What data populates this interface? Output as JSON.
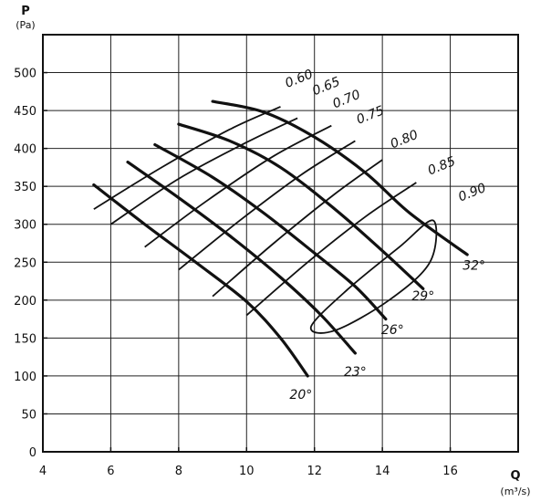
{
  "chart_data": {
    "type": "line",
    "xlabel": "Q",
    "xunit": "(m³/s)",
    "ylabel": "P",
    "yunit": "(Pa)",
    "xlim": [
      4,
      18
    ],
    "ylim": [
      0,
      550
    ],
    "xticks": [
      "4",
      "6",
      "8",
      "10",
      "12",
      "14",
      "16"
    ],
    "yticks": [
      "0",
      "50",
      "100",
      "150",
      "200",
      "250",
      "300",
      "350",
      "400",
      "450",
      "500"
    ],
    "grid": true,
    "blade_angle_curves": [
      {
        "name": "20°",
        "points": [
          [
            5.5,
            352
          ],
          [
            7,
            300
          ],
          [
            8.5,
            250
          ],
          [
            10,
            198
          ],
          [
            11,
            150
          ],
          [
            11.8,
            100
          ]
        ],
        "label_at": [
          11.6,
          70
        ]
      },
      {
        "name": "23°",
        "points": [
          [
            6.5,
            382
          ],
          [
            8,
            335
          ],
          [
            9.5,
            285
          ],
          [
            11,
            230
          ],
          [
            12.2,
            180
          ],
          [
            13.2,
            130
          ]
        ],
        "label_at": [
          13.2,
          100
        ]
      },
      {
        "name": "26°",
        "points": [
          [
            7.3,
            405
          ],
          [
            9,
            362
          ],
          [
            10.5,
            315
          ],
          [
            12,
            262
          ],
          [
            13.2,
            218
          ],
          [
            14.1,
            175
          ]
        ],
        "label_at": [
          14.3,
          155
        ]
      },
      {
        "name": "29°",
        "points": [
          [
            8,
            432
          ],
          [
            9.5,
            410
          ],
          [
            11,
            375
          ],
          [
            12.6,
            320
          ],
          [
            14,
            265
          ],
          [
            15.2,
            215
          ]
        ],
        "label_at": [
          15.2,
          200
        ]
      },
      {
        "name": "32°",
        "points": [
          [
            9,
            462
          ],
          [
            10.5,
            448
          ],
          [
            12,
            415
          ],
          [
            13.5,
            368
          ],
          [
            14.8,
            315
          ],
          [
            16.5,
            260
          ]
        ],
        "label_at": [
          16.7,
          240
        ]
      }
    ],
    "efficiency_curves": [
      {
        "name": "0.60",
        "points": [
          [
            5.5,
            320
          ],
          [
            7.5,
            375
          ],
          [
            9.5,
            425
          ],
          [
            11,
            455
          ]
        ],
        "label_at": [
          11.2,
          480
        ]
      },
      {
        "name": "0.65",
        "points": [
          [
            6,
            300
          ],
          [
            8,
            360
          ],
          [
            10,
            408
          ],
          [
            11.5,
            440
          ]
        ],
        "label_at": [
          12,
          470
        ]
      },
      {
        "name": "0.70",
        "points": [
          [
            7,
            270
          ],
          [
            8.8,
            330
          ],
          [
            10.8,
            390
          ],
          [
            12.5,
            430
          ]
        ],
        "label_at": [
          12.6,
          453
        ]
      },
      {
        "name": "0.75",
        "points": [
          [
            8,
            240
          ],
          [
            9.8,
            305
          ],
          [
            11.6,
            365
          ],
          [
            13.2,
            410
          ]
        ],
        "label_at": [
          13.3,
          432
        ]
      },
      {
        "name": "0.80",
        "points": [
          [
            9,
            205
          ],
          [
            10.8,
            275
          ],
          [
            12.6,
            340
          ],
          [
            14,
            385
          ]
        ],
        "label_at": [
          14.3,
          400
        ]
      },
      {
        "name": "0.85",
        "points": [
          [
            10,
            180
          ],
          [
            11.8,
            250
          ],
          [
            13.5,
            310
          ],
          [
            15,
            355
          ]
        ],
        "label_at": [
          15.4,
          365
        ]
      },
      {
        "name": "0.90",
        "points": [
          [
            11.9,
            165
          ],
          [
            13,
            215
          ],
          [
            14.5,
            270
          ],
          [
            15.5,
            305
          ],
          [
            15.4,
            250
          ],
          [
            14.2,
            200
          ],
          [
            12.6,
            160
          ],
          [
            11.9,
            165
          ]
        ],
        "closed": true,
        "label_at": [
          16.3,
          330
        ]
      }
    ]
  }
}
